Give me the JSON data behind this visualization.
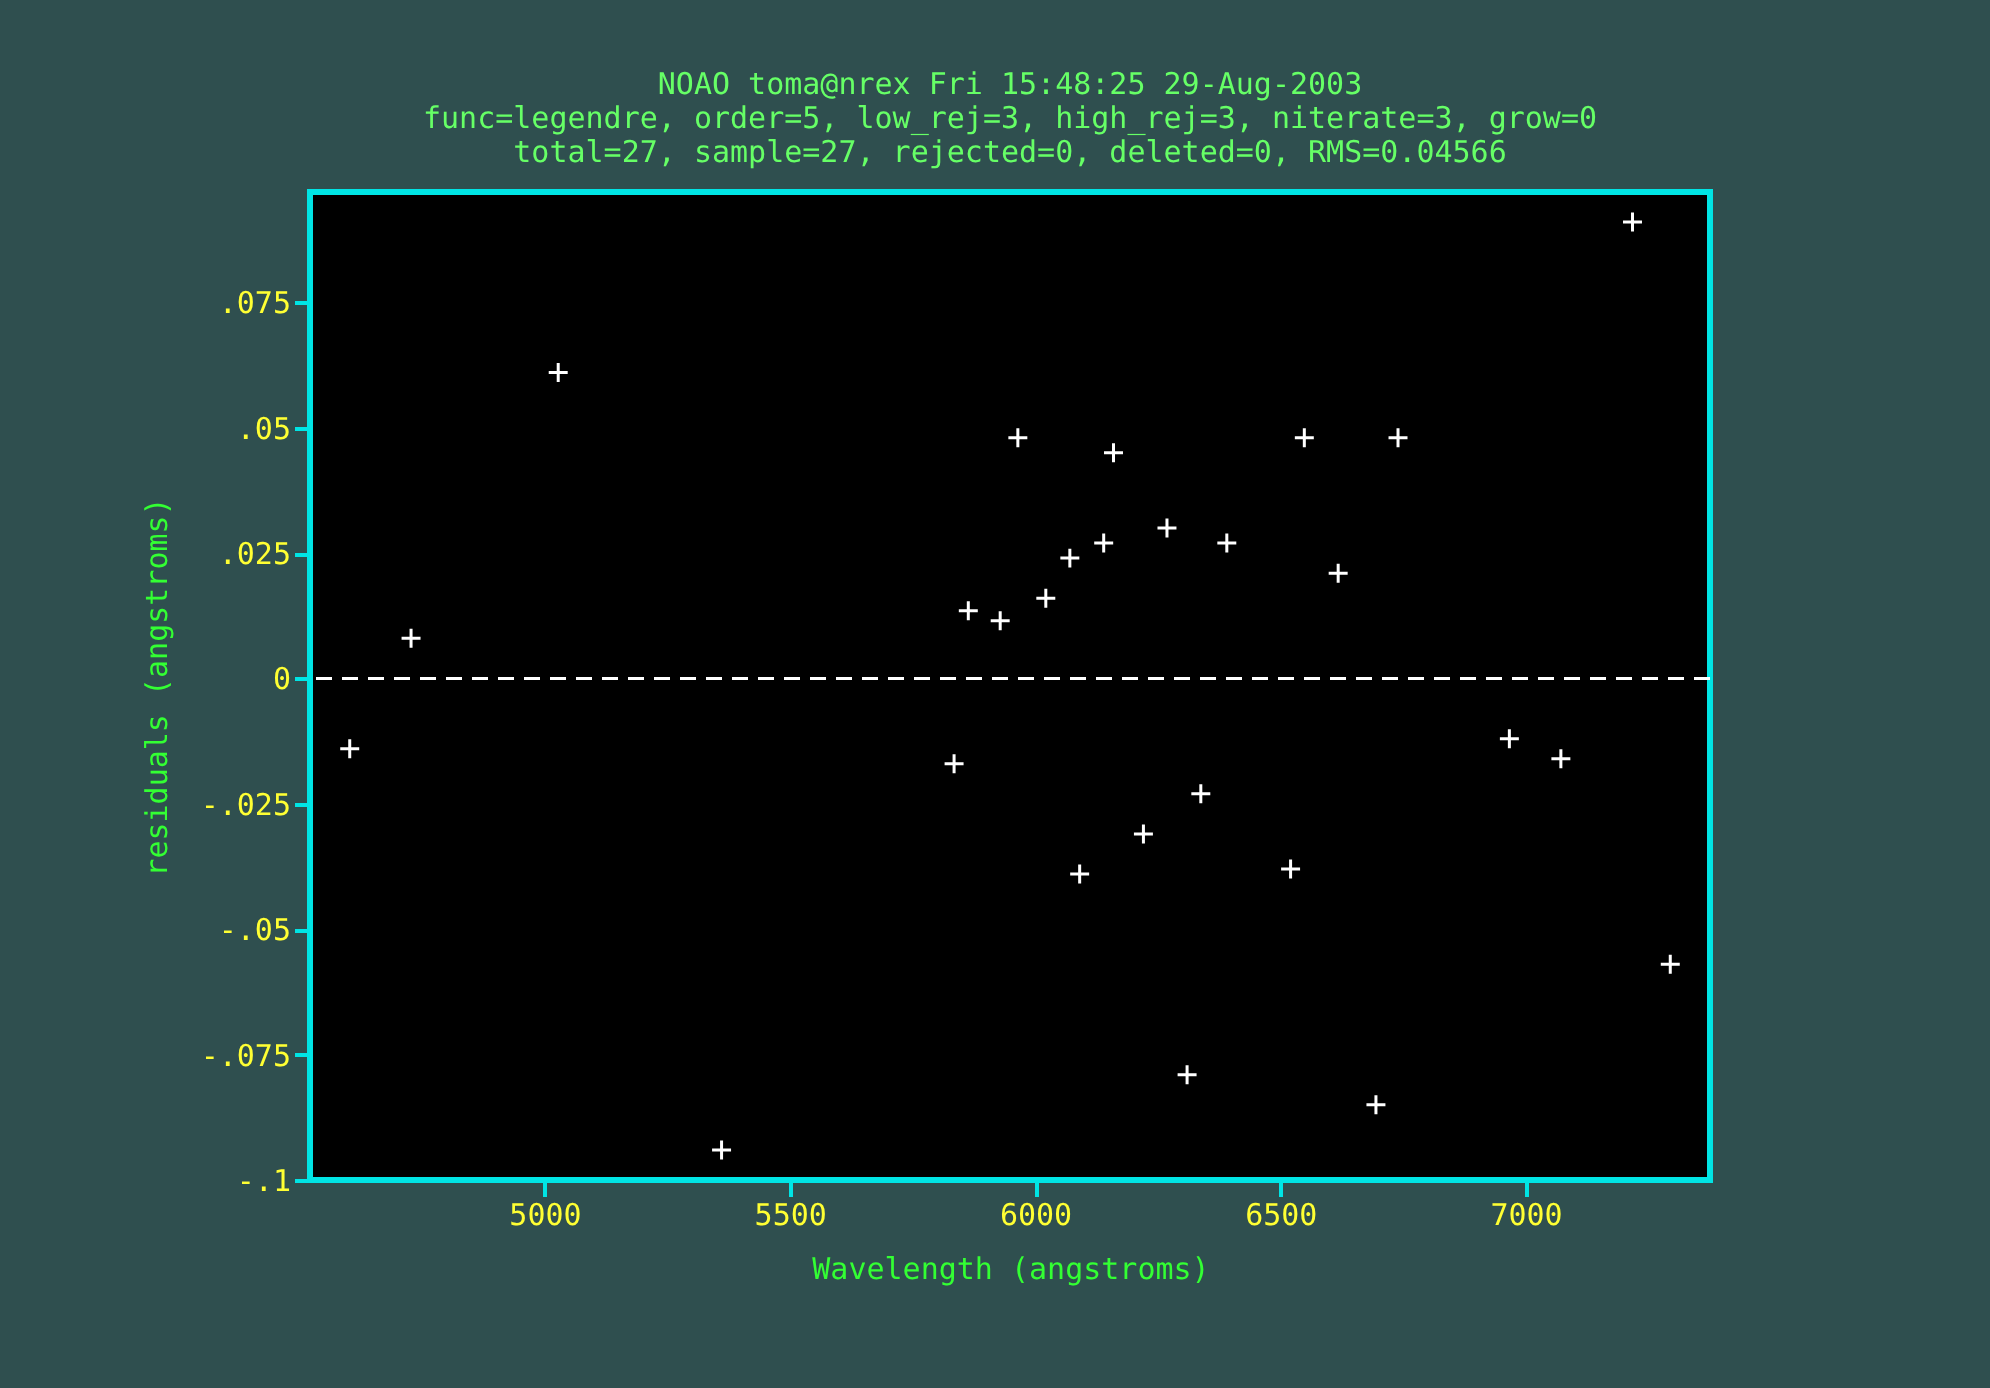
{
  "chart_data": {
    "type": "scatter",
    "title": "NOAO toma@nrex Fri 15:48:25 29-Aug-2003",
    "subtitle": "func=legendre, order=5, low_rej=3, high_rej=3, niterate=3, grow=0\ntotal=27, sample=27, rejected=0, deleted=0, RMS=0.04566",
    "xlabel": "Wavelength (angstroms)",
    "ylabel": "residuals (angstroms)",
    "x": [
      4603,
      4728,
      5028,
      5361,
      5835,
      5864,
      5929,
      5965,
      6022,
      6071,
      6091,
      6140,
      6160,
      6221,
      6269,
      6310,
      6338,
      6391,
      6521,
      6549,
      6618,
      6695,
      6740,
      6967,
      7072,
      7218,
      7295
    ],
    "series": [
      {
        "color": "#ffffff",
        "values": [
          -0.014,
          0.008,
          0.061,
          -0.094,
          -0.017,
          0.0135,
          0.0115,
          0.048,
          0.016,
          0.024,
          -0.039,
          0.027,
          0.045,
          -0.031,
          0.03,
          -0.079,
          -0.023,
          0.027,
          -0.038,
          0.048,
          0.021,
          -0.085,
          0.048,
          -0.012,
          -0.016,
          0.091,
          -0.057
        ]
      }
    ],
    "xlim": [
      4522,
      7376
    ],
    "xticks": [
      5000,
      5500,
      6000,
      6500,
      7000
    ],
    "ylim": [
      -0.1,
      0.097
    ],
    "yticks": [
      {
        "value": -0.1,
        "label": "-.1"
      },
      {
        "value": -0.075,
        "label": "-.075"
      },
      {
        "value": -0.05,
        "label": "-.05"
      },
      {
        "value": -0.025,
        "label": "-.025"
      },
      0,
      {
        "value": 0.025,
        "label": ".025"
      },
      {
        "value": 0.05,
        "label": ".05"
      },
      {
        "value": 0.075,
        "label": ".075"
      }
    ],
    "ref_lines": [
      {
        "axis": "y",
        "value": 0,
        "color": "#ffffff",
        "line_style": "dashed"
      }
    ],
    "marker": "cross",
    "grid": false
  }
}
